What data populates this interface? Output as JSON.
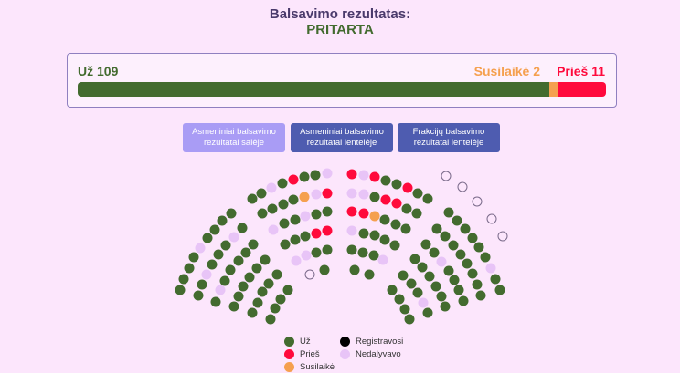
{
  "header": {
    "title": "Balsavimo rezultatas:",
    "result": "PRITARTA"
  },
  "summary": {
    "for_label": "Už 109",
    "abstain_label": "Susilaikė 2",
    "against_label": "Prieš 11",
    "for": 109,
    "abstain": 2,
    "against": 11
  },
  "buttons": [
    {
      "label": "Asmeniniai balsavimo rezultatai salėje",
      "active": true
    },
    {
      "label": "Asmeniniai balsavimo rezultatai lentelėje",
      "active": false
    },
    {
      "label": "Frakcijų balsavimo rezultatai lentelėje",
      "active": false
    }
  ],
  "colors": {
    "for": "#436b2f",
    "against": "#ff0a3c",
    "abstain": "#f5a04f",
    "registered": "#000000",
    "absent": "#e8c4f7",
    "empty": "#7a6a8a"
  },
  "legend": [
    {
      "key": "for",
      "label": "Už"
    },
    {
      "key": "against",
      "label": "Prieš"
    },
    {
      "key": "abstain",
      "label": "Susilaikė"
    },
    {
      "key": "registered",
      "label": "Registravosi"
    },
    {
      "key": "absent",
      "label": "Nedalyvavo"
    }
  ],
  "seats": "GGNGRGGN GGGGONR NGGNGG GGGRR NNGG EG GGGGNGGGG GGNGGGNG GNGGGGG GGGGGG GGGGG GGGG RNRGGRGG NNGRRGG RROGGG NGGGG GGGN GG EEEEE GGGGGGNGG GGGGGGGG GGNGGGG GGGGGG GGGNG GGGG"
}
